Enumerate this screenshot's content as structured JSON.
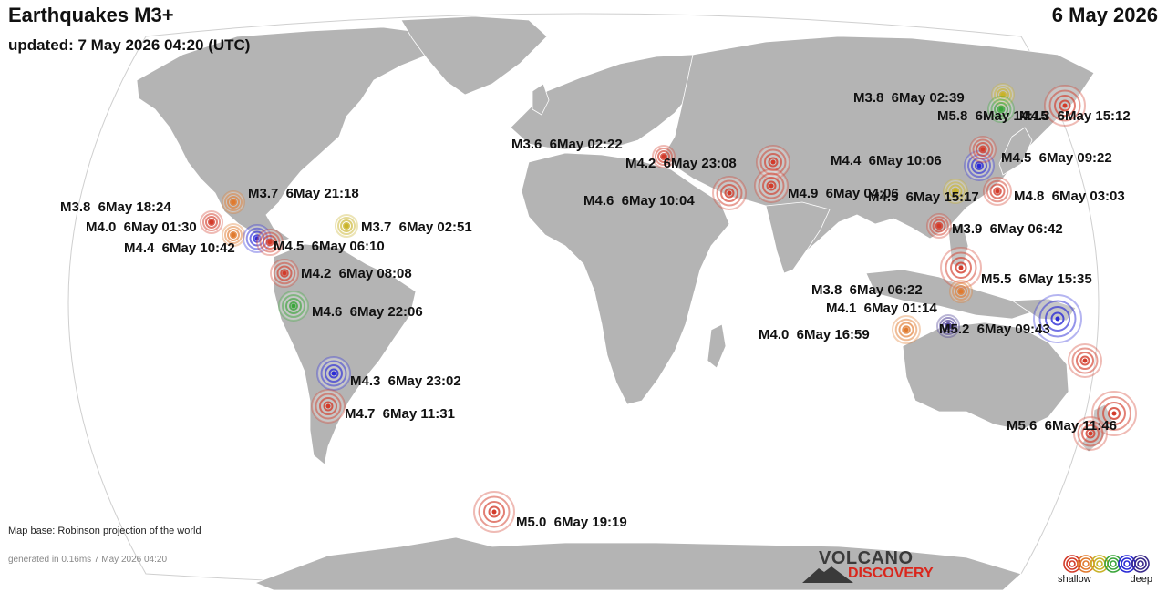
{
  "header": {
    "title": "Earthquakes M3+",
    "updated": "updated:  7 May 2026 04:20 (UTC)",
    "date": "6 May 2026"
  },
  "footer": {
    "map_base": "Map base: Robinson projection of the world",
    "generated": "generated in 0.16ms  7 May 2026 04:20"
  },
  "logo": {
    "line1": "VOLCANO",
    "line2": "DISCOVERY"
  },
  "legend": {
    "shallow": "shallow",
    "deep": "deep",
    "depth_colors": [
      "#d23b2a",
      "#e07a2e",
      "#c9b32a",
      "#3aa53a",
      "#2a2ad6",
      "#3a2a8a"
    ]
  },
  "colors": {
    "ocean": "#ffffff",
    "land": "#b4b4b4",
    "border": "#ffffff"
  },
  "earthquakes": [
    {
      "label": "M3.8  6May 18:24",
      "color": "#d23b2a"
    },
    {
      "label": "M4.0  6May 01:30",
      "color": "#e07a2e"
    },
    {
      "label": "M3.7  6May 21:18",
      "color": "#e07a2e"
    },
    {
      "label": "M4.4  6May 10:42",
      "color": "#2a2ad6"
    },
    {
      "label": "M4.5  6May 06:10",
      "color": "#d23b2a"
    },
    {
      "label": "M3.7  6May 02:51",
      "color": "#c9b32a"
    },
    {
      "label": "M4.2  6May 08:08",
      "color": "#d23b2a"
    },
    {
      "label": "M4.6  6May 22:06",
      "color": "#3aa53a"
    },
    {
      "label": "M4.3  6May 23:02",
      "color": "#2a2ad6"
    },
    {
      "label": "M4.7  6May 11:31",
      "color": "#d23b2a"
    },
    {
      "label": "M5.0  6May 19:19",
      "color": "#d23b2a"
    },
    {
      "label": "M3.6  6May 02:22",
      "color": "#d23b2a"
    },
    {
      "label": "M4.2  6May 23:08",
      "color": "#d23b2a"
    },
    {
      "label": "M4.6  6May 10:04",
      "color": "#d23b2a"
    },
    {
      "label": "M4.9  6May 04:06",
      "color": "#d23b2a"
    },
    {
      "label": "M4.4  6May 10:06",
      "color": "#2a2ad6"
    },
    {
      "label": "M4.5  6May 15:17",
      "color": "#c9b32a"
    },
    {
      "label": "M4.5  6May 09:22",
      "color": "#d23b2a"
    },
    {
      "label": "M4.8  6May 03:03",
      "color": "#d23b2a"
    },
    {
      "label": "M3.9  6May 06:42",
      "color": "#d23b2a"
    },
    {
      "label": "M3.8  6May 02:39",
      "color": "#c9b32a"
    },
    {
      "label": "M5.8  6May 14:15",
      "color": "#3aa53a"
    },
    {
      "label": "M4.3  6May 15:12",
      "color": "#d23b2a"
    },
    {
      "label": "M5.5  6May 15:35",
      "color": "#d23b2a"
    },
    {
      "label": "M3.8  6May 06:22",
      "color": "#e07a2e"
    },
    {
      "label": "M4.1  6May 01:14",
      "color": "#3a2a8a"
    },
    {
      "label": "M5.2  6May 09:43",
      "color": "#2a2ad6"
    },
    {
      "label": "M4.0  6May 16:59",
      "color": "#e07a2e"
    },
    {
      "label": "",
      "color": "#d23b2a"
    },
    {
      "label": "M5.6  6May 11:46",
      "color": "#d23b2a"
    },
    {
      "label": "",
      "color": "#d23b2a"
    }
  ]
}
